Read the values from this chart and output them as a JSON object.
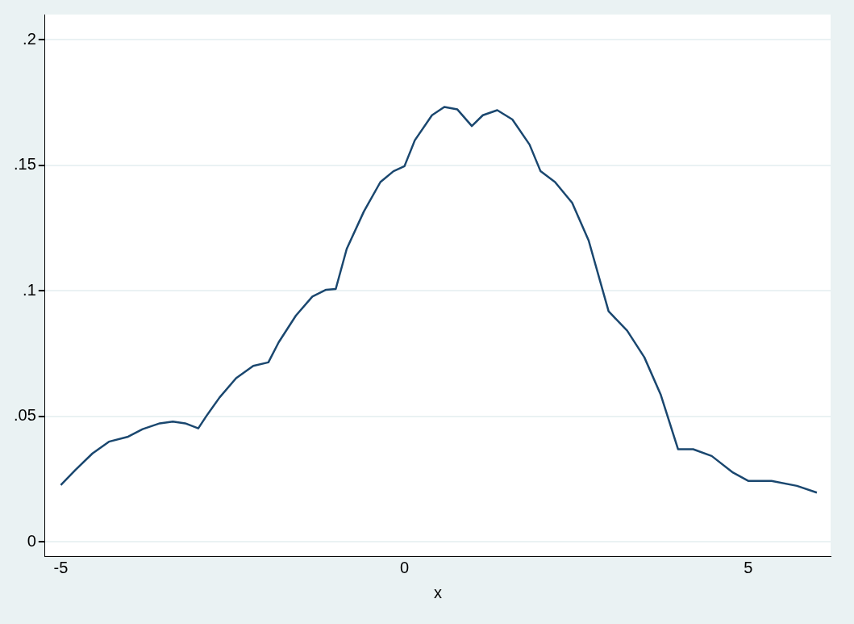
{
  "chart_data": {
    "type": "line",
    "xlabel": "x",
    "x": [
      -5,
      -4.79,
      -4.54,
      -4.3,
      -4.02,
      -3.81,
      -3.56,
      -3.37,
      -3.19,
      -3.0,
      -2.88,
      -2.69,
      -2.45,
      -2.2,
      -1.98,
      -1.83,
      -1.58,
      -1.34,
      -1.14,
      -1.0,
      -0.84,
      -0.59,
      -0.35,
      -0.16,
      0,
      0.15,
      0.4,
      0.58,
      0.77,
      0.98,
      1.14,
      1.35,
      1.57,
      1.82,
      1.98,
      2.19,
      2.44,
      2.68,
      2.97,
      3.24,
      3.49,
      3.73,
      3.98,
      4.2,
      4.47,
      4.78,
      5.0,
      5.34,
      5.71,
      6.0
    ],
    "series": [
      {
        "color": "#1a476f",
        "values": [
          0.0226,
          0.0286,
          0.0352,
          0.0399,
          0.0419,
          0.0449,
          0.0472,
          0.0479,
          0.0472,
          0.0452,
          0.0502,
          0.0575,
          0.0652,
          0.0701,
          0.0715,
          0.0795,
          0.0901,
          0.0977,
          0.1004,
          0.1007,
          0.1167,
          0.1316,
          0.1433,
          0.1476,
          0.1496,
          0.1599,
          0.1699,
          0.1732,
          0.1722,
          0.1656,
          0.1699,
          0.1719,
          0.1682,
          0.1582,
          0.1476,
          0.1433,
          0.135,
          0.12,
          0.0918,
          0.0841,
          0.0735,
          0.0585,
          0.0369,
          0.0369,
          0.0342,
          0.0276,
          0.0243,
          0.0243,
          0.0223,
          0.0196
        ]
      }
    ],
    "xlim": [
      -5.23,
      6.2
    ],
    "xticks": [
      -5,
      0,
      5
    ],
    "ylim": [
      -0.0057,
      0.21
    ],
    "yticks": [
      0,
      {
        "value": 0.05,
        "label": ".05"
      },
      {
        "value": 0.1,
        "label": ".1"
      },
      {
        "value": 0.15,
        "label": ".15"
      },
      {
        "value": 0.2,
        "label": ".2"
      }
    ],
    "grid": "y",
    "legend": false,
    "marker": "none",
    "line_style": "solid"
  }
}
